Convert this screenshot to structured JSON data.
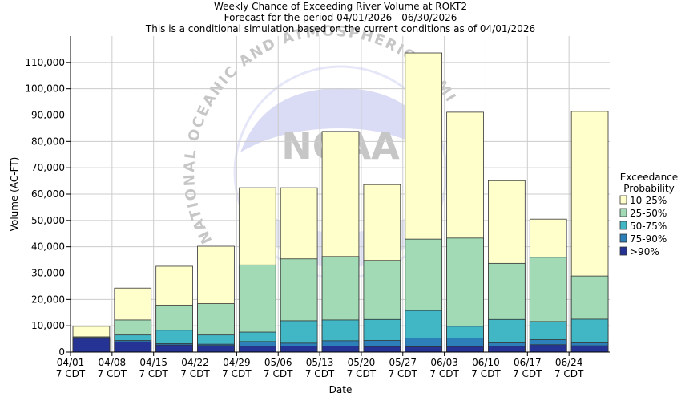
{
  "chart_data": {
    "type": "bar",
    "stacked": true,
    "title": "Weekly Chance of Exceeding River Volume at ROKT2",
    "subtitle1": "Forecast for the period 04/01/2026 - 06/30/2026",
    "subtitle2": "This is a conditional simulation based on the current conditions as of 04/01/2026",
    "xlabel": "Date",
    "ylabel": "Volume (AC-FT)",
    "ylim": [
      0,
      120000
    ],
    "yticks": [
      0,
      10000,
      20000,
      30000,
      40000,
      50000,
      60000,
      70000,
      80000,
      90000,
      100000,
      110000
    ],
    "ytick_labels": [
      "0",
      "10,000",
      "20,000",
      "30,000",
      "40,000",
      "50,000",
      "60,000",
      "70,000",
      "80,000",
      "90,000",
      "100,000",
      "110,000"
    ],
    "grid": true,
    "x_tick_labels": [
      {
        "date": "04/01",
        "time": "7 CDT"
      },
      {
        "date": "04/08",
        "time": "7 CDT"
      },
      {
        "date": "04/15",
        "time": "7 CDT"
      },
      {
        "date": "04/22",
        "time": "7 CDT"
      },
      {
        "date": "04/29",
        "time": "7 CDT"
      },
      {
        "date": "05/06",
        "time": "7 CDT"
      },
      {
        "date": "05/13",
        "time": "7 CDT"
      },
      {
        "date": "05/20",
        "time": "7 CDT"
      },
      {
        "date": "05/27",
        "time": "7 CDT"
      },
      {
        "date": "06/03",
        "time": "7 CDT"
      },
      {
        "date": "06/10",
        "time": "7 CDT"
      },
      {
        "date": "06/17",
        "time": "7 CDT"
      },
      {
        "date": "06/24",
        "time": "7 CDT"
      }
    ],
    "legend_title": [
      "Exceedance",
      "Probability"
    ],
    "legend_position": "right",
    "series": [
      {
        "name": "10-25%",
        "color": "#ffffcc",
        "tops": [
          9800,
          24300,
          32600,
          40200,
          62400,
          62400,
          83800,
          63600,
          113600,
          91100,
          65100,
          50500,
          91400
        ]
      },
      {
        "name": "25-50%",
        "color": "#a1dab4",
        "tops": [
          5800,
          12200,
          17800,
          18400,
          33100,
          35400,
          36300,
          34800,
          42900,
          43300,
          33700,
          36000,
          28900
        ]
      },
      {
        "name": "50-75%",
        "color": "#41b6c4",
        "tops": [
          5500,
          6500,
          8300,
          6500,
          7600,
          11900,
          12200,
          12400,
          15800,
          9800,
          12400,
          11600,
          12500
        ]
      },
      {
        "name": "75-90%",
        "color": "#2c7fb8",
        "tops": [
          5300,
          4400,
          3200,
          3000,
          4000,
          3400,
          4300,
          4400,
          5300,
          5300,
          3500,
          4700,
          3500
        ]
      },
      {
        "name": ">90%",
        "color": "#253494",
        "tops": [
          5200,
          3900,
          2700,
          2500,
          2200,
          2300,
          2300,
          2100,
          2000,
          2100,
          2200,
          2800,
          2400
        ]
      }
    ],
    "watermark_text": "NATIONAL OCEANIC AND ATMOSPHERIC ADMINISTRATION",
    "watermark_logo_text": "NOAA"
  }
}
